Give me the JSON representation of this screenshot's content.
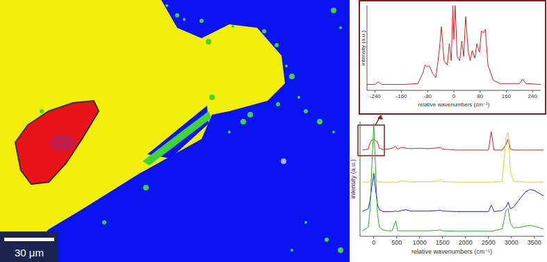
{
  "image_panel": {
    "scale_bar_label": "30 μm"
  },
  "chart_data": [
    {
      "type": "line",
      "x_label": "relative wavenumbers (cm⁻¹)",
      "y_label": "intensity (a.u.)",
      "xlim": [
        -265,
        265
      ],
      "xticks": [
        -240,
        -160,
        -80,
        0,
        80,
        160,
        240
      ],
      "ylim": [
        0,
        100
      ],
      "tick_labels": "x",
      "x": [
        -265,
        -240,
        -230,
        -220,
        -150,
        -110,
        -95,
        -88,
        -82,
        -75,
        -65,
        -55,
        -45,
        -38,
        -30,
        -20,
        -14,
        -8,
        -3,
        0,
        4,
        10,
        18,
        24,
        30,
        36,
        44,
        50,
        56,
        64,
        70,
        78,
        84,
        90,
        96,
        104,
        120,
        140,
        200,
        210,
        220,
        265
      ],
      "series": [
        {
          "color": "#e8171b",
          "values": [
            7,
            7,
            10,
            7,
            7,
            8,
            20,
            30,
            28,
            29,
            20,
            15,
            45,
            75,
            35,
            30,
            55,
            35,
            100,
            60,
            100,
            40,
            35,
            58,
            40,
            87,
            45,
            35,
            47,
            38,
            55,
            45,
            70,
            68,
            72,
            30,
            12,
            8,
            8,
            13,
            8,
            7
          ]
        }
      ]
    },
    {
      "type": "line",
      "x_label": "relative wavenumbers (cm⁻¹)",
      "y_label": "intensity (a.u.)",
      "xlim": [
        -300,
        3700
      ],
      "xticks": [
        0,
        500,
        1000,
        1500,
        2000,
        2500,
        3000,
        3500
      ],
      "ylim": [
        0,
        125
      ],
      "tick_labels": "x",
      "x": [
        -250,
        -120,
        -80,
        -40,
        0,
        40,
        80,
        120,
        200,
        300,
        400,
        480,
        520,
        600,
        700,
        800,
        1000,
        1200,
        1400,
        1450,
        1500,
        1800,
        2200,
        2500,
        2560,
        2620,
        2800,
        2880,
        2930,
        2980,
        3050,
        3200,
        3300,
        3400,
        3500,
        3700
      ],
      "series": [
        {
          "color": "#e8171b",
          "values": [
            94,
            95,
            102,
            105,
            106,
            104,
            103,
            96,
            94.5,
            95,
            96,
            98,
            95,
            97,
            96,
            95.5,
            96,
            95.5,
            96.5,
            97,
            95,
            94,
            94,
            94,
            114,
            94,
            94,
            100,
            106,
            95,
            94,
            94,
            94,
            94,
            94,
            94
          ]
        },
        {
          "color": "#d9d41c",
          "values": [
            59,
            59,
            60,
            65,
            70,
            62,
            60,
            59,
            59,
            59,
            59,
            59,
            59,
            60,
            60,
            59,
            59.5,
            59.5,
            60,
            62,
            59.5,
            59,
            59,
            59,
            59,
            59,
            60,
            108,
            113,
            70,
            60,
            59.5,
            59,
            59,
            59,
            59
          ]
        },
        {
          "color": "#1a1aff",
          "values": [
            27,
            30,
            40,
            55,
            68,
            50,
            35,
            29,
            27,
            27,
            27,
            27.5,
            27,
            28,
            29,
            27.5,
            27.5,
            27.5,
            28,
            28.5,
            27.5,
            27,
            27,
            27,
            34,
            27,
            28,
            32,
            37,
            30,
            32,
            42,
            48,
            51,
            50,
            44
          ]
        },
        {
          "color": "#22b022",
          "values": [
            6,
            10,
            30,
            80,
            123,
            70,
            25,
            10,
            7,
            6,
            6,
            17,
            6,
            6,
            6,
            6,
            6,
            6,
            6.5,
            7,
            6,
            5.5,
            5.5,
            5.5,
            5.5,
            6,
            8,
            28,
            30,
            14,
            9,
            10,
            11,
            12,
            11,
            8
          ]
        }
      ]
    }
  ]
}
